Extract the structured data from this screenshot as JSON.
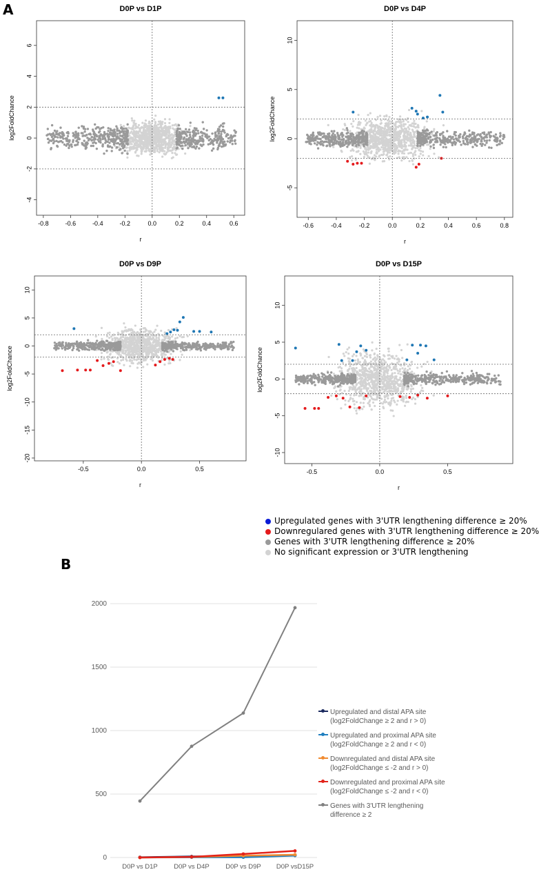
{
  "panel_a_label": "A",
  "panel_b_label": "B",
  "colors": {
    "up": "#1f77b4",
    "down": "#e41a1c",
    "sig": "#9a9a9a",
    "ns": "#d3d3d3",
    "legend_up": "#0a1bd6",
    "legend_down": "#e41a1c",
    "legend_sig": "#9a9a9a",
    "legend_ns": "#d3d3d3"
  },
  "legend_a": {
    "items": [
      {
        "label": "Upregulated genes with 3'UTR lengthening difference ≥ 20%",
        "color": "#0a1bd6"
      },
      {
        "label": "Downregulared genes with 3'UTR lengthening difference ≥ 20%",
        "color": "#e41a1c"
      },
      {
        "label": "Genes with 3'UTR lengthening difference ≥ 20%",
        "color": "#9a9a9a"
      },
      {
        "label": "No significant expression or 3'UTR lengthening",
        "color": "#d3d3d3"
      }
    ]
  },
  "chart_data": [
    {
      "type": "scatter",
      "title": "D0P vs D1P",
      "xlabel": "r",
      "ylabel": "log2FoldChance",
      "xlim": [
        -0.85,
        0.68
      ],
      "ylim": [
        -5.0,
        7.6
      ],
      "xticks": [
        -0.8,
        -0.6,
        -0.4,
        -0.2,
        0.0,
        0.2,
        0.4,
        0.6
      ],
      "xticklabels": [
        "-0.8",
        "-0.6",
        "-0.4",
        "-0.2",
        "0.0",
        "0.2",
        "0.4",
        "0.6"
      ],
      "yticks": [
        -4,
        -2,
        0,
        2,
        4,
        6
      ],
      "yticklabels": [
        "-4",
        "-2",
        "0",
        "2",
        "4",
        "6"
      ],
      "hlines": [
        -2,
        2
      ],
      "vline": 0,
      "up_points": [
        [
          0.49,
          2.6
        ],
        [
          0.52,
          2.6
        ]
      ],
      "down_points": [],
      "sig_spread": [
        -0.78,
        0.62
      ],
      "ns_spread": [
        -0.2,
        0.22,
        -1.8,
        2.0
      ]
    },
    {
      "type": "scatter",
      "title": "D0P vs D4P",
      "xlabel": "r",
      "ylabel": "log2FoldChance",
      "xlim": [
        -0.68,
        0.86
      ],
      "ylim": [
        -8.0,
        12.0
      ],
      "xticks": [
        -0.6,
        -0.4,
        -0.2,
        0.0,
        0.2,
        0.4,
        0.6,
        0.8
      ],
      "xticklabels": [
        "-0.6",
        "-0.4",
        "-0.2",
        "0.0",
        "0.2",
        "0.4",
        "0.6",
        "0.8"
      ],
      "yticks": [
        -5,
        0,
        5,
        10
      ],
      "yticklabels": [
        "-5",
        "0",
        "5",
        "10"
      ],
      "hlines": [
        -2,
        2
      ],
      "vline": 0,
      "up_points": [
        [
          -0.28,
          2.7
        ],
        [
          0.14,
          3.1
        ],
        [
          0.17,
          2.8
        ],
        [
          0.18,
          2.5
        ],
        [
          0.22,
          2.1
        ],
        [
          0.25,
          2.2
        ],
        [
          0.34,
          4.4
        ],
        [
          0.36,
          2.7
        ]
      ],
      "down_points": [
        [
          -0.32,
          -2.3
        ],
        [
          -0.28,
          -2.6
        ],
        [
          -0.25,
          -2.5
        ],
        [
          -0.22,
          -2.5
        ],
        [
          0.17,
          -2.9
        ],
        [
          0.19,
          -2.6
        ],
        [
          0.35,
          -2.0
        ]
      ],
      "sig_spread": [
        -0.62,
        0.8
      ],
      "ns_spread": [
        -0.3,
        0.25,
        -3.5,
        4.0
      ]
    },
    {
      "type": "scatter",
      "title": "D0P vs D9P",
      "xlabel": "r",
      "ylabel": "log2FoldChance",
      "xlim": [
        -0.92,
        0.9
      ],
      "ylim": [
        -20.5,
        12.5
      ],
      "xticks": [
        -0.5,
        0.0,
        0.5
      ],
      "xticklabels": [
        "-0.5",
        "0.0",
        "0.5"
      ],
      "yticks": [
        -20,
        -15,
        -10,
        -5,
        0,
        5,
        10
      ],
      "yticklabels": [
        "-20",
        "-15",
        "-10",
        "-5",
        "0",
        "5",
        "10"
      ],
      "hlines": [
        -2,
        2
      ],
      "vline": 0,
      "up_points": [
        [
          -0.58,
          3.1
        ],
        [
          0.22,
          2.2
        ],
        [
          0.25,
          2.5
        ],
        [
          0.28,
          2.9
        ],
        [
          0.31,
          2.8
        ],
        [
          0.33,
          4.3
        ],
        [
          0.36,
          5.1
        ],
        [
          0.45,
          2.6
        ],
        [
          0.5,
          2.6
        ],
        [
          0.6,
          2.5
        ]
      ],
      "down_points": [
        [
          -0.68,
          -4.4
        ],
        [
          -0.55,
          -4.3
        ],
        [
          -0.48,
          -4.3
        ],
        [
          -0.44,
          -4.3
        ],
        [
          -0.38,
          -2.6
        ],
        [
          -0.33,
          -3.5
        ],
        [
          -0.28,
          -3.1
        ],
        [
          -0.24,
          -2.8
        ],
        [
          -0.18,
          -4.4
        ],
        [
          0.12,
          -3.4
        ],
        [
          0.16,
          -2.8
        ],
        [
          0.2,
          -2.4
        ],
        [
          0.24,
          -2.2
        ],
        [
          0.27,
          -2.4
        ]
      ],
      "sig_spread": [
        -0.75,
        0.8
      ],
      "ns_spread": [
        -0.3,
        0.28,
        -5.0,
        6.0
      ]
    },
    {
      "type": "scatter",
      "title": "D0P vs D15P",
      "xlabel": "r",
      "ylabel": "log2FoldChance",
      "xlim": [
        -0.7,
        0.98
      ],
      "ylim": [
        -11.5,
        14.0
      ],
      "xticks": [
        -0.5,
        0.0,
        0.5
      ],
      "xticklabels": [
        "-0.5",
        "0.0",
        "0.5"
      ],
      "yticks": [
        -10,
        -5,
        0,
        5,
        10
      ],
      "yticklabels": [
        "-10",
        "-5",
        "0",
        "5",
        "10"
      ],
      "hlines": [
        -2,
        2
      ],
      "vline": 0,
      "up_points": [
        [
          -0.62,
          4.2
        ],
        [
          -0.3,
          4.7
        ],
        [
          -0.28,
          2.5
        ],
        [
          -0.2,
          2.5
        ],
        [
          -0.17,
          3.7
        ],
        [
          -0.14,
          4.5
        ],
        [
          -0.1,
          3.9
        ],
        [
          0.2,
          2.6
        ],
        [
          0.24,
          4.6
        ],
        [
          0.28,
          3.5
        ],
        [
          0.3,
          4.6
        ],
        [
          0.34,
          4.5
        ],
        [
          0.4,
          2.6
        ]
      ],
      "down_points": [
        [
          -0.55,
          -4.0
        ],
        [
          -0.48,
          -4.0
        ],
        [
          -0.45,
          -4.0
        ],
        [
          -0.38,
          -2.5
        ],
        [
          -0.32,
          -2.3
        ],
        [
          -0.27,
          -2.6
        ],
        [
          -0.22,
          -3.8
        ],
        [
          -0.15,
          -3.9
        ],
        [
          -0.1,
          -2.3
        ],
        [
          0.15,
          -2.4
        ],
        [
          0.22,
          -2.5
        ],
        [
          0.28,
          -2.2
        ],
        [
          0.35,
          -2.6
        ],
        [
          0.5,
          -2.3
        ]
      ],
      "sig_spread": [
        -0.62,
        0.9
      ],
      "ns_spread": [
        -0.28,
        0.25,
        -6.0,
        8.0
      ]
    },
    {
      "type": "line",
      "title": "",
      "xlabel": "",
      "ylabel": "",
      "categories": [
        "D0P vs D1P",
        "D0P vs D4P",
        "D0P vs D9P",
        "D0P vsD15P"
      ],
      "ylim": [
        0,
        2000
      ],
      "yticks": [
        0,
        500,
        1000,
        1500,
        2000
      ],
      "yticklabels": [
        "0",
        "500",
        "1000",
        "1500",
        "2000"
      ],
      "series": [
        {
          "name": "Upregulated and distal APA site",
          "name2": "(log2FoldChange ≥ 2 and r > 0)",
          "color": "#1b2a5e",
          "values": [
            2,
            8,
            10,
            20
          ]
        },
        {
          "name": "Upregulated and proximal APA site",
          "name2": "(log2FoldChange ≥ 2 and r < 0)",
          "color": "#1f7fbf",
          "values": [
            1,
            2,
            2,
            15
          ]
        },
        {
          "name": "Downregulated and distal APA site",
          "name2": "(log2FoldChange ≤ -2 and r > 0)",
          "color": "#f08a30",
          "values": [
            0,
            4,
            14,
            22
          ]
        },
        {
          "name": "Downregulated and proximal APA site",
          "name2": "(log2FoldChange ≤ -2 and r < 0)",
          "color": "#e2231a",
          "values": [
            0,
            5,
            28,
            52
          ]
        },
        {
          "name": "Genes with 3'UTR lengthening",
          "name2": "difference ≥ 2",
          "color": "#808080",
          "values": [
            445,
            876,
            1138,
            1968
          ]
        }
      ]
    }
  ]
}
